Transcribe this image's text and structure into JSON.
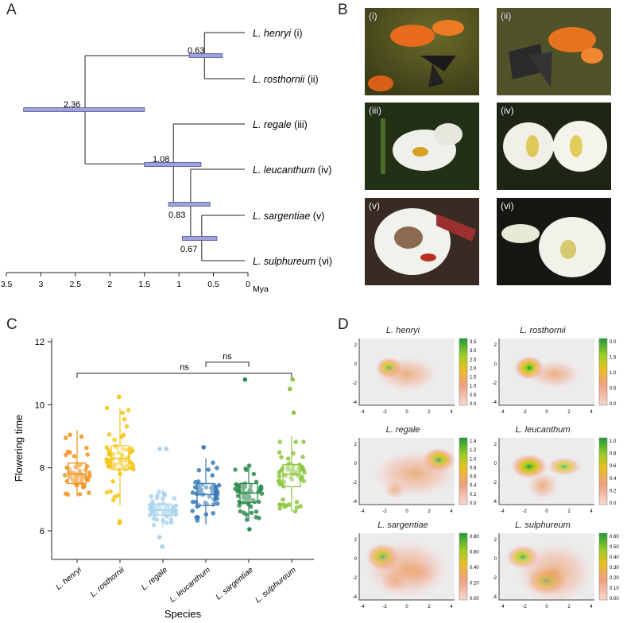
{
  "panels": {
    "a": "A",
    "b": "B",
    "c": "C",
    "d": "D"
  },
  "tree": {
    "taxa": [
      {
        "genus": "L.",
        "species": "henryi",
        "num": "(i)"
      },
      {
        "genus": "L.",
        "species": "rosthornii",
        "num": "(ii)"
      },
      {
        "genus": "L.",
        "species": "regale",
        "num": "(iii)"
      },
      {
        "genus": "L.",
        "species": "leucanthum",
        "num": "(iv)"
      },
      {
        "genus": "L.",
        "species": "sargentiae",
        "num": "(v)"
      },
      {
        "genus": "L.",
        "species": "sulphureum",
        "num": "(vi)"
      }
    ],
    "nodes": {
      "n_hr": "0.63",
      "root": "2.36",
      "n_rest": "1.08",
      "n_lss": "0.83",
      "n_ss": "0.67"
    },
    "axis_ticks": [
      "3.5",
      "3",
      "2.5",
      "2",
      "1.5",
      "1",
      "0.5",
      "0"
    ],
    "axis_unit": "Mya",
    "ranges_mya": {
      "root": [
        3.25,
        1.5
      ],
      "n_hr": [
        0.85,
        0.37
      ],
      "n_rest": [
        1.5,
        0.68
      ],
      "n_lss": [
        1.15,
        0.55
      ],
      "n_ss": [
        0.95,
        0.45
      ]
    },
    "ages_mya": {
      "root": 2.36,
      "n_hr": 0.63,
      "n_rest": 1.08,
      "n_lss": 0.83,
      "n_ss": 0.67
    }
  },
  "photos": [
    "(i)",
    "(ii)",
    "(iii)",
    "(iv)",
    "(v)",
    "(vi)"
  ],
  "chart_data": [
    {
      "type": "box",
      "title": "",
      "xlabel": "Species",
      "ylabel": "Flowering time",
      "ylim": [
        5.5,
        12
      ],
      "yticks": [
        "6",
        "8",
        "10",
        "12"
      ],
      "categories": [
        "L. henryi",
        "L. rosthornii",
        "L. regale",
        "L. leucanthum",
        "L. sargentiae",
        "L. sulphureum"
      ],
      "colors": [
        "#f0931e",
        "#f5c518",
        "#a9d3ec",
        "#3a7ab5",
        "#2e8b4f",
        "#8dc63f"
      ],
      "boxes": [
        {
          "min": 7.1,
          "q1": 7.5,
          "median": 7.8,
          "q3": 8.15,
          "max": 9.2
        },
        {
          "min": 6.8,
          "q1": 7.95,
          "median": 8.3,
          "q3": 8.7,
          "max": 9.9
        },
        {
          "min": 6.1,
          "q1": 6.5,
          "median": 6.65,
          "q3": 6.85,
          "max": 7.3
        },
        {
          "min": 6.2,
          "q1": 6.8,
          "median": 7.15,
          "q3": 7.5,
          "max": 8.3
        },
        {
          "min": 6.3,
          "q1": 6.9,
          "median": 7.2,
          "q3": 7.5,
          "max": 8.1
        },
        {
          "min": 6.6,
          "q1": 7.4,
          "median": 7.8,
          "q3": 8.1,
          "max": 9.0
        }
      ],
      "outliers": [
        [],
        [
          6.3,
          6.25,
          10.25
        ],
        [
          5.5,
          5.8,
          8.6,
          8.6
        ],
        [
          8.65
        ],
        [
          6.05,
          10.8
        ],
        [
          10.8,
          10.5,
          9.75
        ]
      ],
      "comparisons": [
        {
          "from": 3,
          "to": 4,
          "label": "ns",
          "y": 11.35
        },
        {
          "from": 0,
          "to": 5,
          "label": "ns",
          "y": 11.0
        }
      ]
    },
    {
      "type": "heatmap",
      "panels": [
        {
          "title": "L. henryi",
          "legend": [
            "3.5",
            "3.0",
            "2.5",
            "2.0",
            "1.5",
            "1.0",
            "0.5",
            "0.0"
          ]
        },
        {
          "title": "L. rosthornii",
          "legend": [
            "2.0",
            "1.5",
            "1.0",
            "0.5",
            "0.0"
          ]
        },
        {
          "title": "L. regale",
          "legend": [
            "1.4",
            "1.2",
            "1.0",
            "0.8",
            "0.6",
            "0.4",
            "0.2",
            "0.0"
          ]
        },
        {
          "title": "L. leucanthum",
          "legend": [
            "1.0",
            "0.8",
            "0.6",
            "0.4",
            "0.2",
            "0.0"
          ]
        },
        {
          "title": "L. sargentiae",
          "legend": [
            "0.80",
            "0.60",
            "0.40",
            "0.20",
            "0.00"
          ]
        },
        {
          "title": "L. sulphureum",
          "legend": [
            "0.60",
            "0.50",
            "0.40",
            "0.30",
            "0.20",
            "0.10",
            "0.00"
          ]
        }
      ],
      "xticks": [
        "-4",
        "-2",
        "0",
        "2",
        "4"
      ],
      "yticks": [
        "2",
        "0",
        "-2",
        "-4"
      ]
    }
  ]
}
